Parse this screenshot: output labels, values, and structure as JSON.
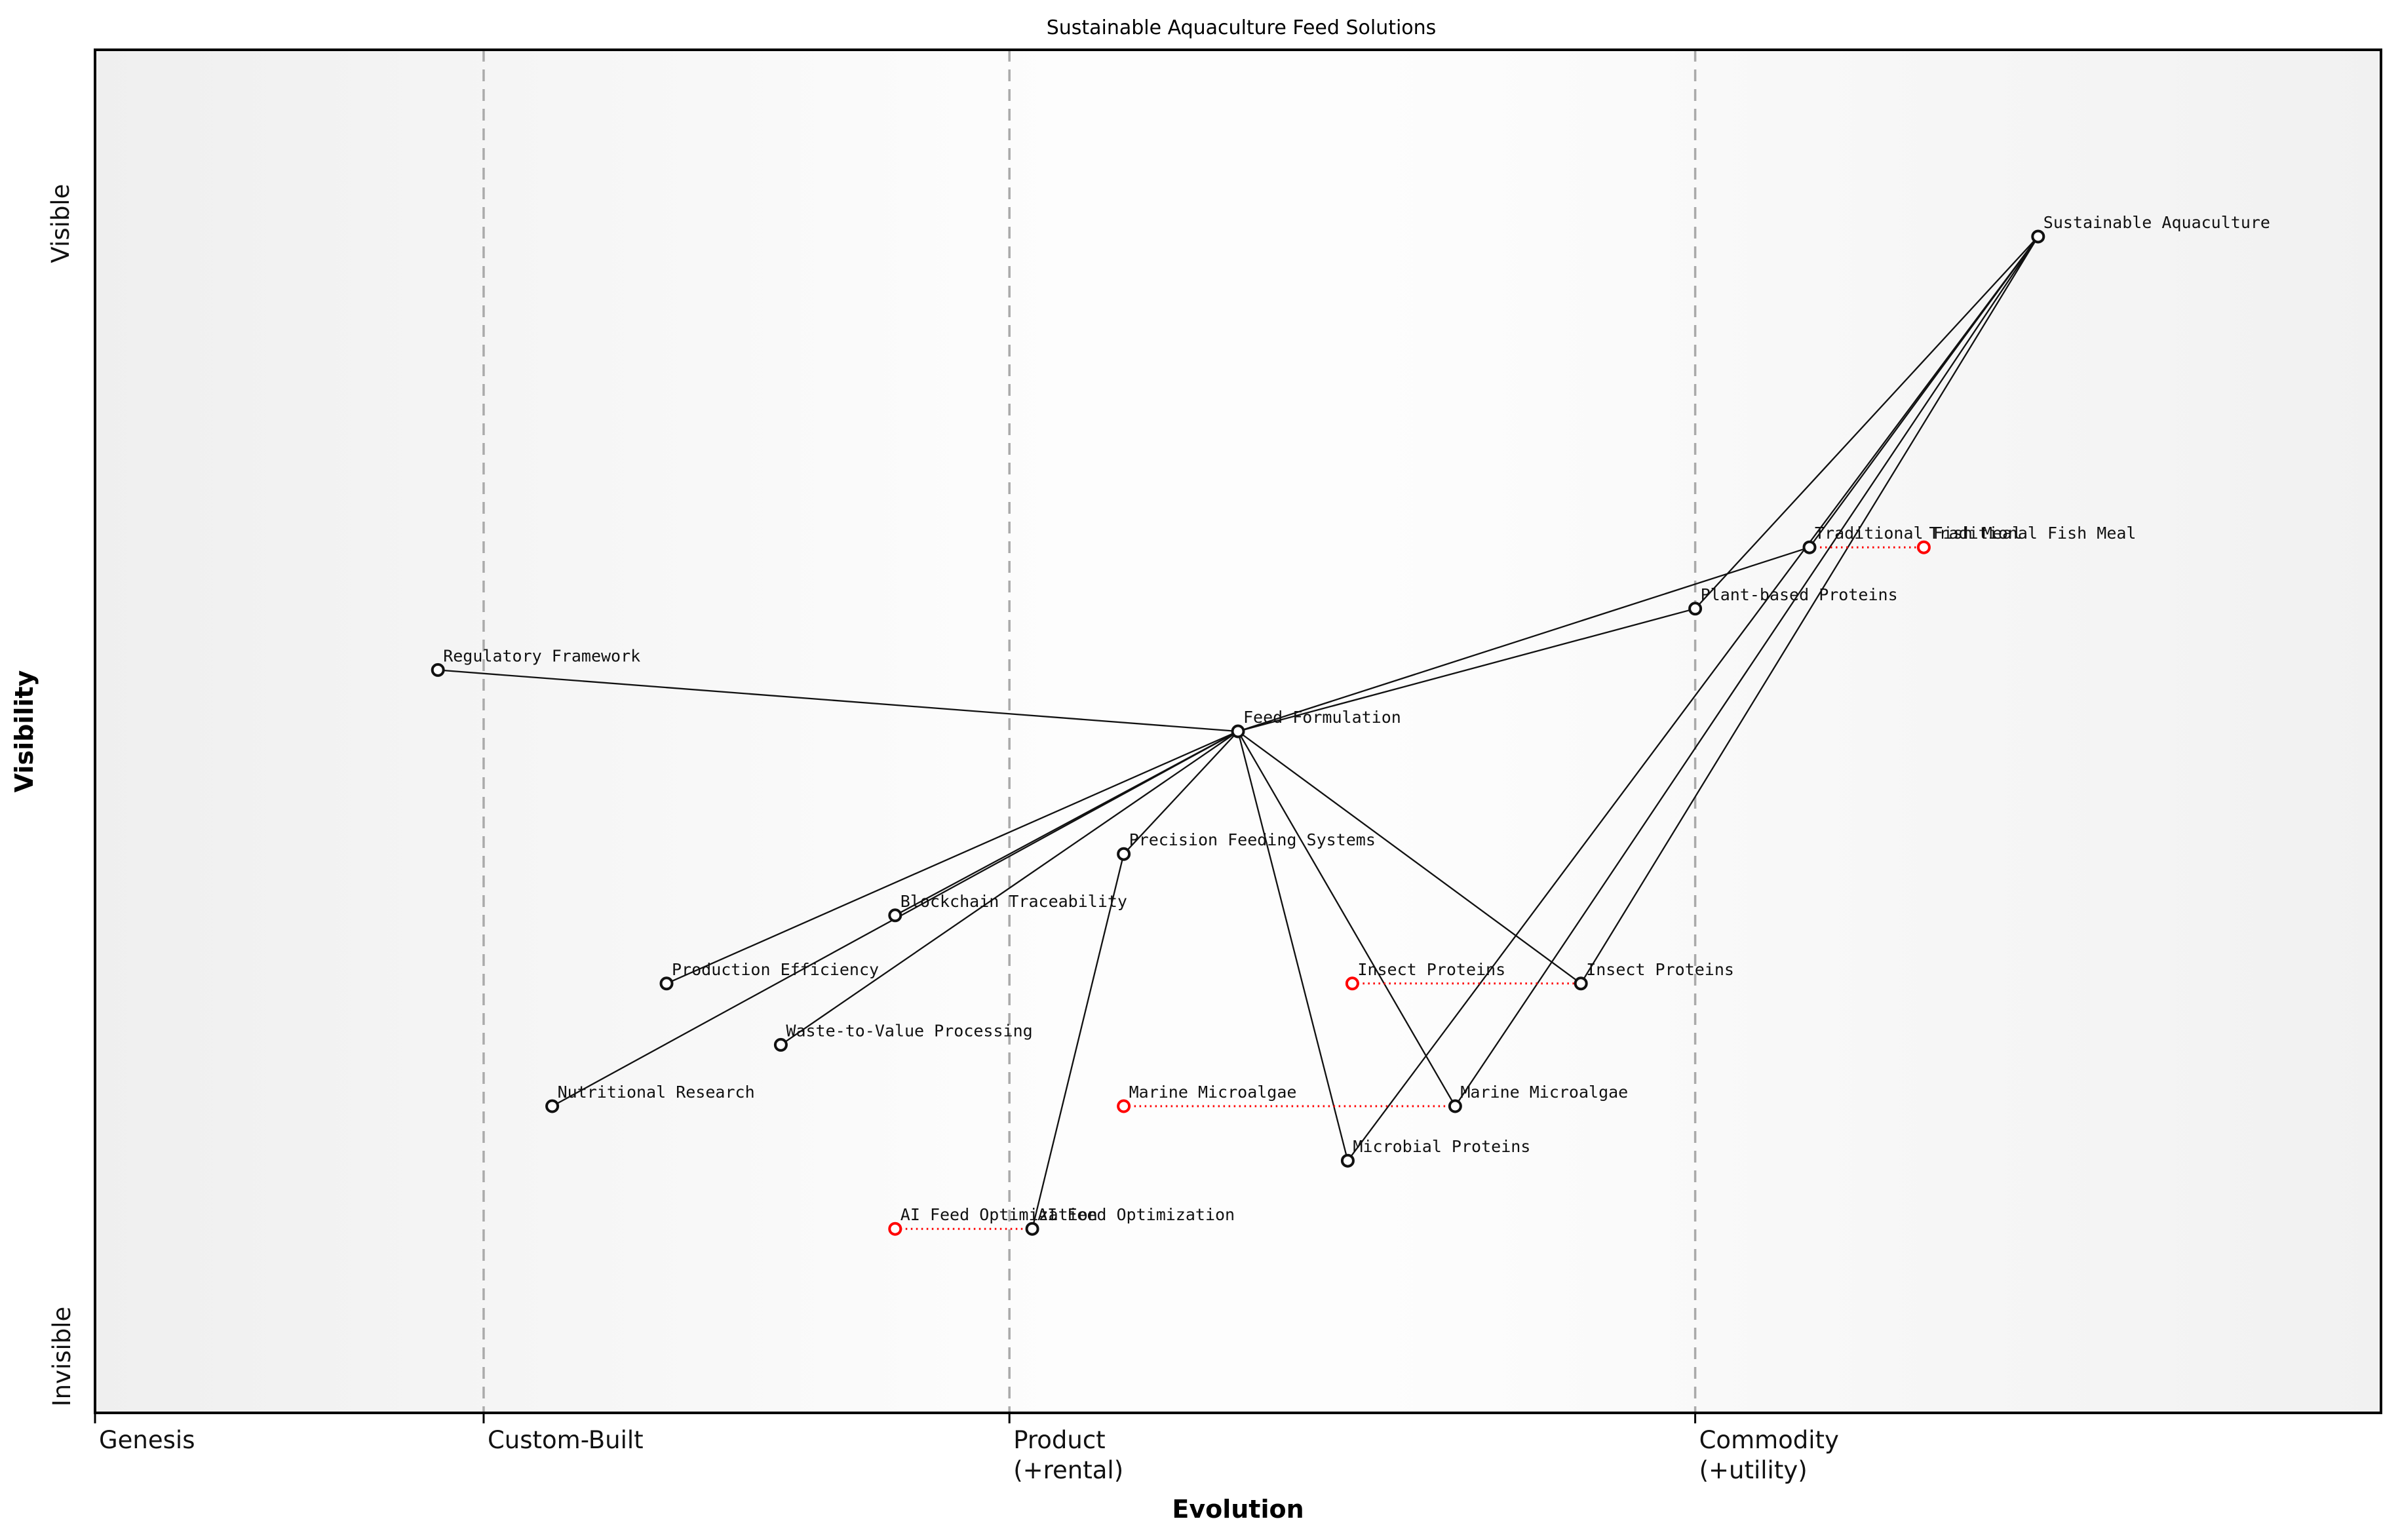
{
  "title": "Sustainable Aquaculture Feed Solutions",
  "axes": {
    "x_title": "Evolution",
    "y_title": "Visibility",
    "y_top_label": "Visible",
    "y_bottom_label": "Invisible",
    "stages": [
      {
        "label_lines": [
          "Genesis"
        ],
        "x_frac": 0.0
      },
      {
        "label_lines": [
          "Custom-Built"
        ],
        "x_frac": 0.17
      },
      {
        "label_lines": [
          "Product",
          "(+rental)"
        ],
        "x_frac": 0.4
      },
      {
        "label_lines": [
          "Commodity",
          "(+utility)"
        ],
        "x_frac": 0.7
      }
    ]
  },
  "colors": {
    "component_stroke": "#111111",
    "evolved_stroke": "#ff0000",
    "node_fill": "#ffffff",
    "edge": "#111111",
    "evolve_link": "#ff0000",
    "boundary": "#aaaaaa",
    "plot_border": "#000000",
    "bg_left": "#efefef",
    "bg_mid": "#fdfdfd",
    "bg_right": "#f1f1f1"
  },
  "chart_data": {
    "type": "wardley-map",
    "x_axis_range": [
      "Genesis",
      "Commodity (+utility)"
    ],
    "y_axis_range": [
      "Invisible",
      "Visible"
    ],
    "nodes": [
      {
        "id": "sustainable-aquaculture",
        "label": "Sustainable Aquaculture",
        "evolution": 0.85,
        "visibility": 0.863,
        "color": "black"
      },
      {
        "id": "traditional-fish-meal",
        "label": "Traditional Fish Meal",
        "evolution": 0.75,
        "visibility": 0.635,
        "color": "black"
      },
      {
        "id": "traditional-fish-meal-evolved",
        "label": "Traditional Fish Meal",
        "evolution": 0.8,
        "visibility": 0.635,
        "color": "red"
      },
      {
        "id": "plant-based-proteins",
        "label": "Plant-based Proteins",
        "evolution": 0.7,
        "visibility": 0.59,
        "color": "black"
      },
      {
        "id": "regulatory-framework",
        "label": "Regulatory Framework",
        "evolution": 0.15,
        "visibility": 0.545,
        "color": "black"
      },
      {
        "id": "feed-formulation",
        "label": "Feed Formulation",
        "evolution": 0.5,
        "visibility": 0.5,
        "color": "black"
      },
      {
        "id": "precision-feeding-systems",
        "label": "Precision Feeding Systems",
        "evolution": 0.45,
        "visibility": 0.41,
        "color": "black"
      },
      {
        "id": "blockchain-traceability",
        "label": "Blockchain Traceability",
        "evolution": 0.35,
        "visibility": 0.365,
        "color": "black"
      },
      {
        "id": "production-efficiency",
        "label": "Production Efficiency",
        "evolution": 0.25,
        "visibility": 0.315,
        "color": "black"
      },
      {
        "id": "waste-to-value-processing",
        "label": "Waste-to-Value Processing",
        "evolution": 0.3,
        "visibility": 0.27,
        "color": "black"
      },
      {
        "id": "insect-proteins-evolved",
        "label": "Insect Proteins",
        "evolution": 0.55,
        "visibility": 0.315,
        "color": "red"
      },
      {
        "id": "insect-proteins",
        "label": "Insect Proteins",
        "evolution": 0.65,
        "visibility": 0.315,
        "color": "black"
      },
      {
        "id": "nutritional-research",
        "label": "Nutritional Research",
        "evolution": 0.2,
        "visibility": 0.225,
        "color": "black"
      },
      {
        "id": "marine-microalgae-evolved",
        "label": "Marine Microalgae",
        "evolution": 0.45,
        "visibility": 0.225,
        "color": "red"
      },
      {
        "id": "marine-microalgae",
        "label": "Marine Microalgae",
        "evolution": 0.595,
        "visibility": 0.225,
        "color": "black"
      },
      {
        "id": "microbial-proteins",
        "label": "Microbial Proteins",
        "evolution": 0.548,
        "visibility": 0.185,
        "color": "black"
      },
      {
        "id": "ai-feed-optimization-evolved",
        "label": "AI Feed Optimization",
        "evolution": 0.35,
        "visibility": 0.135,
        "color": "red"
      },
      {
        "id": "ai-feed-optimization",
        "label": "AI Feed Optimization",
        "evolution": 0.41,
        "visibility": 0.135,
        "color": "black"
      }
    ],
    "edges": [
      [
        "feed-formulation",
        "regulatory-framework"
      ],
      [
        "feed-formulation",
        "traditional-fish-meal"
      ],
      [
        "feed-formulation",
        "plant-based-proteins"
      ],
      [
        "feed-formulation",
        "precision-feeding-systems"
      ],
      [
        "feed-formulation",
        "blockchain-traceability"
      ],
      [
        "feed-formulation",
        "production-efficiency"
      ],
      [
        "feed-formulation",
        "waste-to-value-processing"
      ],
      [
        "feed-formulation",
        "nutritional-research"
      ],
      [
        "feed-formulation",
        "insect-proteins"
      ],
      [
        "feed-formulation",
        "marine-microalgae"
      ],
      [
        "feed-formulation",
        "microbial-proteins"
      ],
      [
        "sustainable-aquaculture",
        "traditional-fish-meal"
      ],
      [
        "sustainable-aquaculture",
        "plant-based-proteins"
      ],
      [
        "sustainable-aquaculture",
        "insect-proteins"
      ],
      [
        "sustainable-aquaculture",
        "marine-microalgae"
      ],
      [
        "sustainable-aquaculture",
        "microbial-proteins"
      ],
      [
        "precision-feeding-systems",
        "ai-feed-optimization"
      ]
    ],
    "evolve_links": [
      [
        "traditional-fish-meal",
        "traditional-fish-meal-evolved"
      ],
      [
        "insect-proteins-evolved",
        "insect-proteins"
      ],
      [
        "marine-microalgae-evolved",
        "marine-microalgae"
      ],
      [
        "ai-feed-optimization-evolved",
        "ai-feed-optimization"
      ]
    ]
  }
}
